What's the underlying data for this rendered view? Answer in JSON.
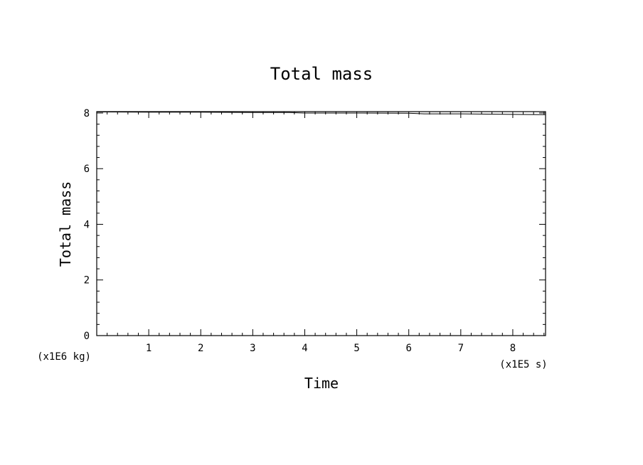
{
  "chart_data": {
    "type": "line",
    "title": "Total mass",
    "xlabel": "Time",
    "ylabel": "Total mass",
    "x_unit": "(x1E5 s)",
    "y_unit": "(x1E6 kg)",
    "xlim": [
      0,
      8.63
    ],
    "ylim": [
      0,
      8.05
    ],
    "x_ticks": [
      1,
      2,
      3,
      4,
      5,
      6,
      7,
      8
    ],
    "y_ticks": [
      0,
      2,
      4,
      6,
      8
    ],
    "grid": false,
    "series": [
      {
        "x": [
          0,
          1,
          2,
          3,
          3.7,
          4,
          5,
          6,
          6.3,
          7,
          8,
          8.63
        ],
        "y": [
          8.04,
          8.03,
          8.03,
          8.02,
          8.02,
          8.0,
          8.0,
          7.99,
          7.97,
          7.97,
          7.95,
          7.94
        ]
      }
    ]
  }
}
